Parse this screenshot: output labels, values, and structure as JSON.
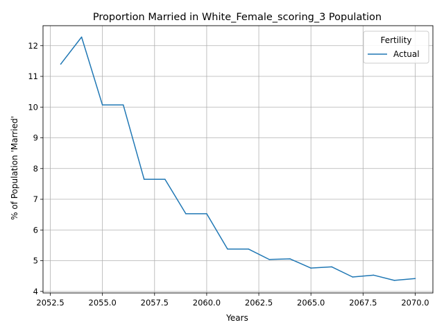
{
  "chart_data": {
    "type": "line",
    "title": "Proportion Married in White_Female_scoring_3 Population",
    "xlabel": "Years",
    "ylabel": "% of Population 'Married'",
    "xlim": [
      2052.15,
      2070.85
    ],
    "ylim": [
      3.95,
      12.65
    ],
    "x_ticks": [
      2052.5,
      2055.0,
      2057.5,
      2060.0,
      2062.5,
      2065.0,
      2067.5,
      2070.0
    ],
    "x_tick_labels": [
      "2052.5",
      "2055.0",
      "2057.5",
      "2060.0",
      "2062.5",
      "2065.0",
      "2067.5",
      "2070.0"
    ],
    "y_ticks": [
      4,
      5,
      6,
      7,
      8,
      9,
      10,
      11,
      12
    ],
    "y_tick_labels": [
      "4",
      "5",
      "6",
      "7",
      "8",
      "9",
      "10",
      "11",
      "12"
    ],
    "grid": true,
    "legend": {
      "title": "Fertility",
      "position": "top-right"
    },
    "series": [
      {
        "name": "Actual",
        "color": "#1f77b4",
        "x": [
          2053,
          2054,
          2055,
          2056,
          2057,
          2058,
          2059,
          2060,
          2061,
          2062,
          2063,
          2064,
          2065,
          2066,
          2067,
          2068,
          2069,
          2070
        ],
        "y": [
          11.4,
          12.28,
          10.07,
          10.07,
          7.65,
          7.65,
          6.53,
          6.53,
          5.38,
          5.38,
          5.04,
          5.06,
          4.76,
          4.8,
          4.47,
          4.53,
          4.36,
          4.42
        ]
      }
    ]
  }
}
